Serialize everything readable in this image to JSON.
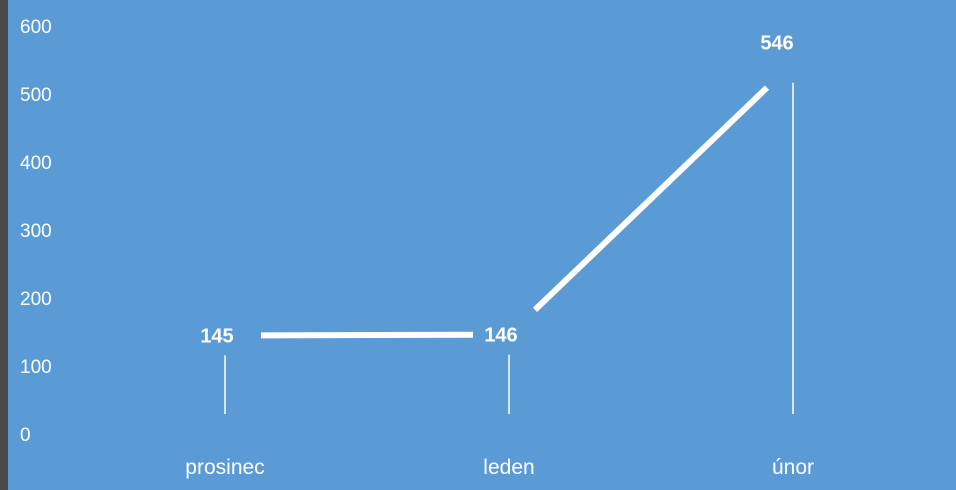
{
  "chart_data": {
    "type": "line",
    "categories": [
      "prosinec",
      "leden",
      "únor"
    ],
    "series": [
      {
        "values": [
          145,
          146,
          546
        ]
      }
    ],
    "data_labels": [
      "145",
      "146",
      "546"
    ],
    "yticks": [
      "0",
      "100",
      "200",
      "300",
      "400",
      "500",
      "600"
    ],
    "ylim": [
      0,
      600
    ],
    "grid": false,
    "drop_lines": true,
    "colors": {
      "background": "#5b9bd5",
      "line": "#ffffff",
      "text": "#ffffff"
    }
  }
}
